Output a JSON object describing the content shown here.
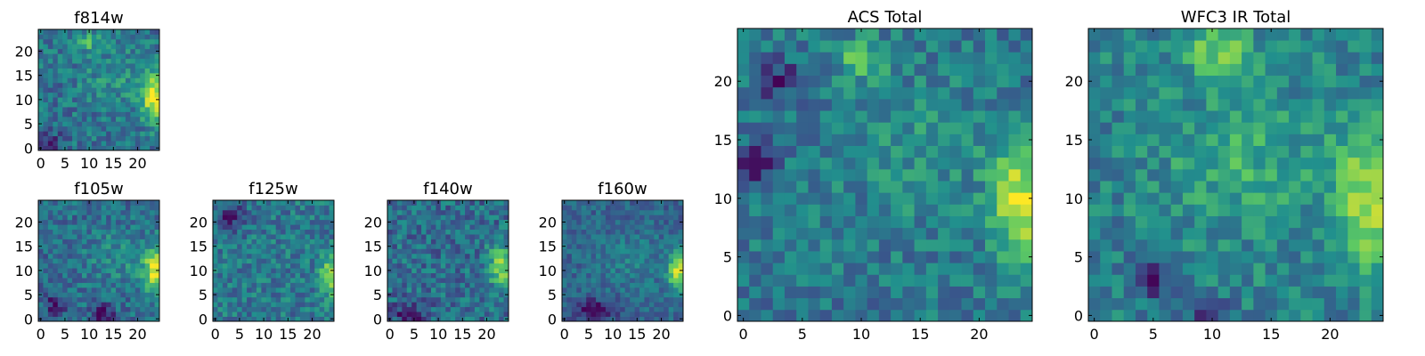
{
  "colormap": [
    "#440154",
    "#3b528b",
    "#21908d",
    "#5dc963",
    "#fde725"
  ],
  "grid_size": 25,
  "chart_data": [
    {
      "type": "heatmap",
      "id": "f814w",
      "title": "f814w",
      "xticks": [
        0,
        5,
        10,
        15,
        20
      ],
      "yticks": [
        0,
        5,
        10,
        15,
        20
      ],
      "xlim": [
        -0.5,
        24.5
      ],
      "ylim": [
        -0.5,
        24.5
      ],
      "bright_spots": [
        {
          "x": 23.5,
          "y": 10,
          "sx": 1.6,
          "sy": 3.5,
          "amp": 0.6
        },
        {
          "x": 10,
          "y": 22,
          "sx": 1.5,
          "sy": 1.2,
          "amp": 0.3
        },
        {
          "x": 16,
          "y": 15,
          "sx": 5,
          "sy": 4,
          "amp": 0.15
        }
      ],
      "dark_spots": [
        {
          "x": 2,
          "y": 1,
          "sx": 2,
          "sy": 2,
          "amp": 0.2
        }
      ],
      "base": 0.38,
      "noise": 0.16,
      "seed": 11
    },
    {
      "type": "heatmap",
      "id": "f105w",
      "title": "f105w",
      "xticks": [
        0,
        5,
        10,
        15,
        20
      ],
      "yticks": [
        0,
        5,
        10,
        15,
        20
      ],
      "xlim": [
        -0.5,
        24.5
      ],
      "ylim": [
        -0.5,
        24.5
      ],
      "bright_spots": [
        {
          "x": 23.5,
          "y": 10,
          "sx": 1.6,
          "sy": 3.2,
          "amp": 0.6
        },
        {
          "x": 16,
          "y": 13,
          "sx": 5,
          "sy": 4,
          "amp": 0.12
        }
      ],
      "dark_spots": [
        {
          "x": 13,
          "y": 1,
          "sx": 1.5,
          "sy": 1.5,
          "amp": 0.35
        },
        {
          "x": 3,
          "y": 3,
          "sx": 1.5,
          "sy": 1.5,
          "amp": 0.3
        }
      ],
      "base": 0.36,
      "noise": 0.15,
      "seed": 23
    },
    {
      "type": "heatmap",
      "id": "f125w",
      "title": "f125w",
      "xticks": [
        0,
        5,
        10,
        15,
        20
      ],
      "yticks": [
        0,
        5,
        10,
        15,
        20
      ],
      "xlim": [
        -0.5,
        24.5
      ],
      "ylim": [
        -0.5,
        24.5
      ],
      "bright_spots": [
        {
          "x": 24,
          "y": 9,
          "sx": 1.5,
          "sy": 3,
          "amp": 0.5
        }
      ],
      "dark_spots": [
        {
          "x": 3,
          "y": 21,
          "sx": 2,
          "sy": 2,
          "amp": 0.3
        }
      ],
      "base": 0.4,
      "noise": 0.16,
      "seed": 37
    },
    {
      "type": "heatmap",
      "id": "f140w",
      "title": "f140w",
      "xticks": [
        0,
        5,
        10,
        15,
        20
      ],
      "yticks": [
        0,
        5,
        10,
        15,
        20
      ],
      "xlim": [
        -0.5,
        24.5
      ],
      "ylim": [
        -0.5,
        24.5
      ],
      "bright_spots": [
        {
          "x": 23,
          "y": 11,
          "sx": 1.8,
          "sy": 2.8,
          "amp": 0.5
        }
      ],
      "dark_spots": [
        {
          "x": 4,
          "y": 1,
          "sx": 2.5,
          "sy": 1.5,
          "amp": 0.3
        }
      ],
      "base": 0.36,
      "noise": 0.17,
      "seed": 41
    },
    {
      "type": "heatmap",
      "id": "f160w",
      "title": "f160w",
      "xticks": [
        0,
        5,
        10,
        15,
        20
      ],
      "yticks": [
        0,
        5,
        10,
        15,
        20
      ],
      "xlim": [
        -0.5,
        24.5
      ],
      "ylim": [
        -0.5,
        24.5
      ],
      "bright_spots": [
        {
          "x": 23.5,
          "y": 10,
          "sx": 1.5,
          "sy": 3,
          "amp": 0.6
        },
        {
          "x": 14,
          "y": 12,
          "sx": 5,
          "sy": 4,
          "amp": 0.1
        }
      ],
      "dark_spots": [
        {
          "x": 6,
          "y": 2,
          "sx": 3,
          "sy": 1.5,
          "amp": 0.3
        }
      ],
      "base": 0.33,
      "noise": 0.12,
      "seed": 53
    },
    {
      "type": "heatmap",
      "id": "acs-total",
      "title": "ACS Total",
      "xticks": [
        0,
        5,
        10,
        15,
        20
      ],
      "yticks": [
        0,
        5,
        10,
        15,
        20
      ],
      "xlim": [
        -0.5,
        24.5
      ],
      "ylim": [
        -0.5,
        24.5
      ],
      "bright_spots": [
        {
          "x": 23.5,
          "y": 9.5,
          "sx": 1.6,
          "sy": 3.5,
          "amp": 0.55
        },
        {
          "x": 10,
          "y": 22,
          "sx": 1.5,
          "sy": 1.2,
          "amp": 0.3
        },
        {
          "x": 15,
          "y": 14,
          "sx": 5,
          "sy": 4,
          "amp": 0.12
        }
      ],
      "dark_spots": [
        {
          "x": 3,
          "y": 20,
          "sx": 1.2,
          "sy": 1.2,
          "amp": 0.3
        },
        {
          "x": 1,
          "y": 13,
          "sx": 1.2,
          "sy": 1.2,
          "amp": 0.3
        }
      ],
      "base": 0.4,
      "noise": 0.15,
      "seed": 67
    },
    {
      "type": "heatmap",
      "id": "wfc3-ir-total",
      "title": "WFC3 IR Total",
      "xticks": [
        0,
        5,
        10,
        15,
        20
      ],
      "yticks": [
        0,
        5,
        10,
        15,
        20
      ],
      "xlim": [
        -0.5,
        24.5
      ],
      "ylim": [
        -0.5,
        24.5
      ],
      "bright_spots": [
        {
          "x": 23.5,
          "y": 10,
          "sx": 1.8,
          "sy": 4,
          "amp": 0.45
        },
        {
          "x": 10.5,
          "y": 22.5,
          "sx": 2,
          "sy": 1.5,
          "amp": 0.35
        },
        {
          "x": 13,
          "y": 13,
          "sx": 5,
          "sy": 4,
          "amp": 0.18
        }
      ],
      "dark_spots": [
        {
          "x": 5,
          "y": 3,
          "sx": 1.2,
          "sy": 1.2,
          "amp": 0.3
        },
        {
          "x": 10,
          "y": 0,
          "sx": 1.2,
          "sy": 1.2,
          "amp": 0.3
        }
      ],
      "base": 0.44,
      "noise": 0.15,
      "seed": 79
    }
  ]
}
